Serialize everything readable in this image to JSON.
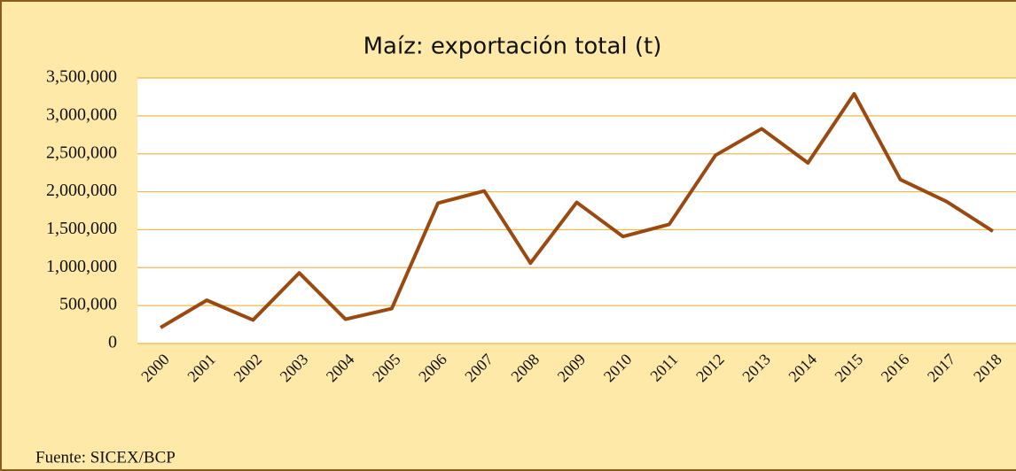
{
  "chart_data": {
    "type": "line",
    "title": "Maíz: exportación total (t)",
    "categories": [
      "2000",
      "2001",
      "2002",
      "2003",
      "2004",
      "2005",
      "2006",
      "2007",
      "2008",
      "2009",
      "2010",
      "2011",
      "2012",
      "2013",
      "2014",
      "2015",
      "2016",
      "2017",
      "2018"
    ],
    "values": [
      210000,
      570000,
      310000,
      930000,
      320000,
      460000,
      1850000,
      2010000,
      1060000,
      1860000,
      1410000,
      1570000,
      2480000,
      2830000,
      2380000,
      3290000,
      2160000,
      1870000,
      1480000
    ],
    "color": "#9a4a10",
    "ylim": [
      0,
      3500000
    ],
    "yticks": [
      0,
      {
        "value": 500000,
        "label": "500,000"
      },
      {
        "value": 1000000,
        "label": "1,000,000"
      },
      {
        "value": 1500000,
        "label": "1,500,000"
      },
      {
        "value": 2000000,
        "label": "2,000,000"
      },
      {
        "value": 2500000,
        "label": "2,500,000"
      },
      {
        "value": 3000000,
        "label": "3,000,000"
      },
      {
        "value": 3500000,
        "label": "3,500,000"
      }
    ],
    "grid": true,
    "source": "Fuente: SICEX/BCP"
  }
}
